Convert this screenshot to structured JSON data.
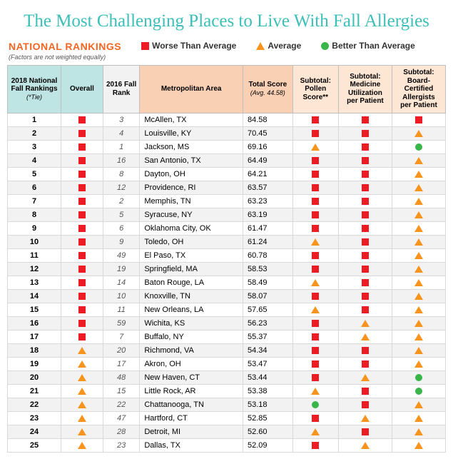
{
  "title": "The Most Challenging Places to Live With Fall Allergies",
  "legend": {
    "heading": "NATIONAL RANKINGS",
    "subnote": "(Factors are not weighted equally)",
    "worse": "Worse Than Average",
    "average": "Average",
    "better": "Better Than Average"
  },
  "colors": {
    "worse": "#ed1c24",
    "average": "#f7941d",
    "better": "#39b54a",
    "title": "#3bbfb8",
    "nr": "#f26522",
    "header_bg": [
      "#bfe4e4",
      "#bfe4e4",
      "#f2f2f2",
      "#f9d0b4",
      "#f9d0b4",
      "#fde6d4",
      "#fde6d4",
      "#fde6d4"
    ],
    "row_alt": "#f2f2f2",
    "row_base": "#ffffff"
  },
  "columns": {
    "widths": [
      70,
      55,
      48,
      135,
      65,
      60,
      70,
      70
    ],
    "headers": [
      {
        "line1": "2018 National",
        "line2": "Fall Rankings",
        "sub": "(*Tie)"
      },
      {
        "line1": "Overall"
      },
      {
        "line1": "2016 Fall",
        "line2": "Rank"
      },
      {
        "line1": "Metropolitan Area"
      },
      {
        "line1": "Total Score",
        "sub": "(Avg. 44.58)"
      },
      {
        "line1": "Subtotal:",
        "line2": "Pollen",
        "line3": "Score**"
      },
      {
        "line1": "Subtotal:",
        "line2": "Medicine",
        "line3": "Utilization",
        "line4": "per Patient"
      },
      {
        "line1": "Subtotal:",
        "line2": "Board-",
        "line3": "Certified",
        "line4": "Allergists",
        "line5": "per Patient"
      }
    ]
  },
  "rows": [
    {
      "rank": "1",
      "overall": "W",
      "old": "3",
      "city": "McAllen, TX",
      "score": "84.58",
      "pollen": "W",
      "med": "W",
      "allerg": "W"
    },
    {
      "rank": "2",
      "overall": "W",
      "old": "4",
      "city": "Louisville, KY",
      "score": "70.45",
      "pollen": "W",
      "med": "W",
      "allerg": "A"
    },
    {
      "rank": "3",
      "overall": "W",
      "old": "1",
      "city": "Jackson, MS",
      "score": "69.16",
      "pollen": "A",
      "med": "W",
      "allerg": "B"
    },
    {
      "rank": "4",
      "overall": "W",
      "old": "16",
      "city": "San Antonio, TX",
      "score": "64.49",
      "pollen": "W",
      "med": "W",
      "allerg": "A"
    },
    {
      "rank": "5",
      "overall": "W",
      "old": "8",
      "city": "Dayton, OH",
      "score": "64.21",
      "pollen": "W",
      "med": "W",
      "allerg": "A"
    },
    {
      "rank": "6",
      "overall": "W",
      "old": "12",
      "city": "Providence, RI",
      "score": "63.57",
      "pollen": "W",
      "med": "W",
      "allerg": "A"
    },
    {
      "rank": "7",
      "overall": "W",
      "old": "2",
      "city": "Memphis, TN",
      "score": "63.23",
      "pollen": "W",
      "med": "W",
      "allerg": "A"
    },
    {
      "rank": "8",
      "overall": "W",
      "old": "5",
      "city": "Syracuse, NY",
      "score": "63.19",
      "pollen": "W",
      "med": "W",
      "allerg": "A"
    },
    {
      "rank": "9",
      "overall": "W",
      "old": "6",
      "city": "Oklahoma City, OK",
      "score": "61.47",
      "pollen": "W",
      "med": "W",
      "allerg": "A"
    },
    {
      "rank": "10",
      "overall": "W",
      "old": "9",
      "city": "Toledo, OH",
      "score": "61.24",
      "pollen": "A",
      "med": "W",
      "allerg": "A"
    },
    {
      "rank": "11",
      "overall": "W",
      "old": "49",
      "city": "El Paso, TX",
      "score": "60.78",
      "pollen": "W",
      "med": "W",
      "allerg": "A"
    },
    {
      "rank": "12",
      "overall": "W",
      "old": "19",
      "city": "Springfield, MA",
      "score": "58.53",
      "pollen": "W",
      "med": "W",
      "allerg": "A"
    },
    {
      "rank": "13",
      "overall": "W",
      "old": "14",
      "city": "Baton Rouge, LA",
      "score": "58.49",
      "pollen": "A",
      "med": "W",
      "allerg": "A"
    },
    {
      "rank": "14",
      "overall": "W",
      "old": "10",
      "city": "Knoxville, TN",
      "score": "58.07",
      "pollen": "W",
      "med": "W",
      "allerg": "A"
    },
    {
      "rank": "15",
      "overall": "W",
      "old": "11",
      "city": "New Orleans, LA",
      "score": "57.65",
      "pollen": "A",
      "med": "W",
      "allerg": "A"
    },
    {
      "rank": "16",
      "overall": "W",
      "old": "59",
      "city": "Wichita, KS",
      "score": "56.23",
      "pollen": "W",
      "med": "A",
      "allerg": "A"
    },
    {
      "rank": "17",
      "overall": "W",
      "old": "7",
      "city": "Buffalo, NY",
      "score": "55.37",
      "pollen": "W",
      "med": "A",
      "allerg": "A"
    },
    {
      "rank": "18",
      "overall": "A",
      "old": "20",
      "city": "Richmond, VA",
      "score": "54.34",
      "pollen": "W",
      "med": "W",
      "allerg": "A"
    },
    {
      "rank": "19",
      "overall": "A",
      "old": "17",
      "city": "Akron, OH",
      "score": "53.47",
      "pollen": "W",
      "med": "W",
      "allerg": "A"
    },
    {
      "rank": "20",
      "overall": "A",
      "old": "48",
      "city": "New Haven, CT",
      "score": "53.44",
      "pollen": "W",
      "med": "A",
      "allerg": "B"
    },
    {
      "rank": "21",
      "overall": "A",
      "old": "15",
      "city": "Little Rock, AR",
      "score": "53.38",
      "pollen": "A",
      "med": "W",
      "allerg": "B"
    },
    {
      "rank": "22",
      "overall": "A",
      "old": "22",
      "city": "Chattanooga, TN",
      "score": "53.18",
      "pollen": "B",
      "med": "W",
      "allerg": "A"
    },
    {
      "rank": "23",
      "overall": "A",
      "old": "47",
      "city": "Hartford, CT",
      "score": "52.85",
      "pollen": "W",
      "med": "A",
      "allerg": "A"
    },
    {
      "rank": "24",
      "overall": "A",
      "old": "28",
      "city": "Detroit, MI",
      "score": "52.60",
      "pollen": "A",
      "med": "W",
      "allerg": "A"
    },
    {
      "rank": "25",
      "overall": "A",
      "old": "23",
      "city": "Dallas, TX",
      "score": "52.09",
      "pollen": "W",
      "med": "A",
      "allerg": "A"
    }
  ]
}
